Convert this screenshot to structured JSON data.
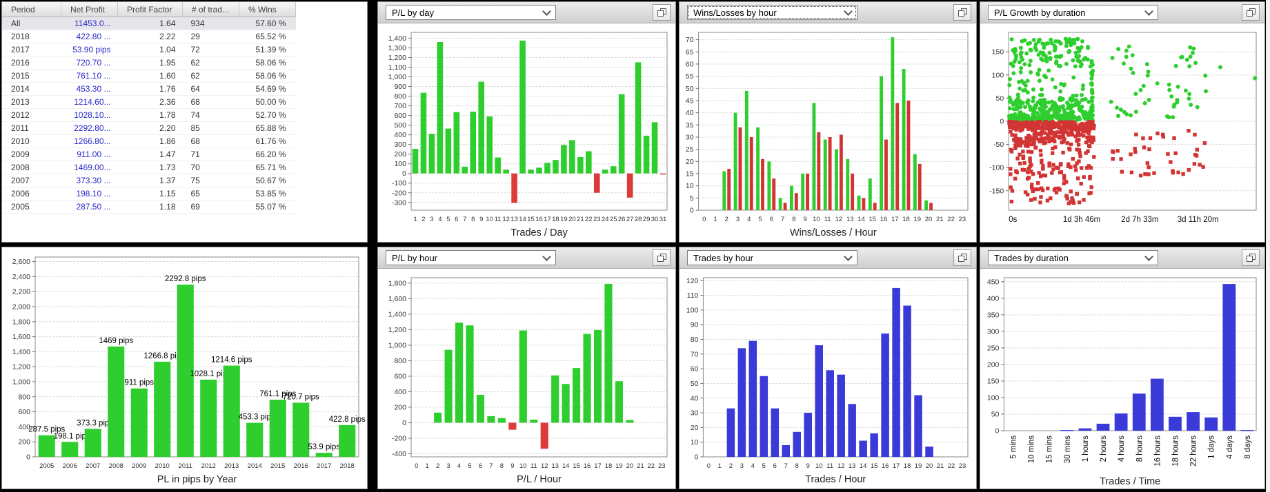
{
  "colors": {
    "win_green": "#2fce2f",
    "loss_red": "#d23434",
    "bar_red": "#dd3a3a",
    "trades_blue": "#3a3ad8",
    "profit_link_blue": "#2929cc"
  },
  "table": {
    "columns": [
      "Period",
      "Net Profit",
      "Profit Factor",
      "# of trad...",
      "% Wins"
    ],
    "rows": [
      [
        "All",
        "11453.0...",
        "1.64",
        "934",
        "57.60 %"
      ],
      [
        "2018",
        "422.80 ...",
        "2.22",
        "29",
        "65.52 %"
      ],
      [
        "2017",
        "53.90 pips",
        "1.04",
        "72",
        "51.39 %"
      ],
      [
        "2016",
        "720.70 ...",
        "1.95",
        "62",
        "58.06 %"
      ],
      [
        "2015",
        "761.10 ...",
        "1.60",
        "62",
        "58.06 %"
      ],
      [
        "2014",
        "453.30 ...",
        "1.76",
        "64",
        "54.69 %"
      ],
      [
        "2013",
        "1214.60...",
        "2.36",
        "68",
        "50.00 %"
      ],
      [
        "2012",
        "1028.10...",
        "1.78",
        "74",
        "52.70 %"
      ],
      [
        "2011",
        "2292.80...",
        "2.20",
        "85",
        "65.88 %"
      ],
      [
        "2010",
        "1266.80...",
        "1.86",
        "68",
        "61.76 %"
      ],
      [
        "2009",
        "911.00 ...",
        "1.47",
        "71",
        "66.20 %"
      ],
      [
        "2008",
        "1469.00...",
        "1.73",
        "70",
        "65.71 %"
      ],
      [
        "2007",
        "373.30 ...",
        "1.37",
        "75",
        "50.67 %"
      ],
      [
        "2006",
        "198.10 ...",
        "1.15",
        "65",
        "53.85 %"
      ],
      [
        "2005",
        "287.50 ...",
        "1.18",
        "69",
        "55.07 %"
      ]
    ]
  },
  "chart_data": [
    {
      "id": "pl-by-day",
      "type": "bar",
      "dropdown": "P/L by day",
      "xlabel": "Trades / Day",
      "categories": [
        "1",
        "2",
        "3",
        "4",
        "5",
        "6",
        "7",
        "8",
        "9",
        "10",
        "11",
        "12",
        "13",
        "14",
        "15",
        "16",
        "17",
        "18",
        "19",
        "20",
        "21",
        "22",
        "23",
        "24",
        "25",
        "26",
        "27",
        "28",
        "29",
        "30",
        "31"
      ],
      "values": [
        255,
        835,
        410,
        1360,
        465,
        635,
        70,
        640,
        950,
        590,
        165,
        40,
        -305,
        1375,
        40,
        60,
        110,
        140,
        295,
        345,
        170,
        230,
        -200,
        40,
        75,
        820,
        -250,
        1150,
        390,
        530,
        -10
      ],
      "positive_color": "#2fce2f",
      "negative_color": "#dd3a3a",
      "ymin": -380,
      "ymax": 1460,
      "ytick_min": -300,
      "ytick_max": 1400,
      "ystep": 100
    },
    {
      "id": "wins-losses-by-hour",
      "type": "grouped_bar",
      "dropdown": "Wins/Losses by hour",
      "xlabel": "Wins/Losses / Hour",
      "focused": true,
      "categories": [
        "0",
        "1",
        "2",
        "3",
        "4",
        "5",
        "6",
        "7",
        "8",
        "9",
        "10",
        "11",
        "12",
        "13",
        "14",
        "15",
        "16",
        "17",
        "18",
        "19",
        "20",
        "21",
        "22",
        "23"
      ],
      "series": [
        {
          "name": "Wins",
          "color": "#2fce2f",
          "values": [
            0,
            0,
            16,
            40,
            49,
            34,
            20,
            5,
            10,
            15,
            44,
            29,
            25,
            21,
            6,
            13,
            55,
            71,
            58,
            23,
            4,
            0,
            0,
            0
          ]
        },
        {
          "name": "Losses",
          "color": "#d23434",
          "values": [
            0,
            0,
            17,
            34,
            30,
            21,
            13,
            3,
            7,
            15,
            32,
            30,
            31,
            15,
            5,
            3,
            29,
            44,
            45,
            19,
            3,
            0,
            0,
            0
          ]
        }
      ],
      "ymin": 0,
      "ymax": 73,
      "ytick_min": 0,
      "ytick_max": 70,
      "ystep": 5
    },
    {
      "id": "pl-growth-by-duration",
      "type": "scatter",
      "dropdown": "P/L Growth by duration",
      "xlabel": "",
      "xticks": [
        {
          "f": 0.0,
          "label": "0s"
        },
        {
          "f": 0.295,
          "label": "1d 3h 46m"
        },
        {
          "f": 0.53,
          "label": "2d 7h 33m"
        },
        {
          "f": 0.765,
          "label": "3d 11h 20m"
        }
      ],
      "ymin": -192,
      "ymax": 192,
      "ytick_min": -150,
      "ytick_max": 150,
      "ystep": 50,
      "clusters": [
        {
          "shape": "circle",
          "color": "#2fce2f",
          "count": 200,
          "x": [
            0.002,
            0.335
          ],
          "y": [
            2,
            48
          ],
          "seed": 11
        },
        {
          "shape": "circle",
          "color": "#2fce2f",
          "count": 120,
          "x": [
            0.002,
            0.335
          ],
          "y": [
            1,
            14
          ],
          "seed": 12
        },
        {
          "shape": "circle",
          "color": "#2fce2f",
          "count": 45,
          "x": [
            0.002,
            0.335
          ],
          "y": [
            48,
            118
          ],
          "seed": 22
        },
        {
          "shape": "circle",
          "color": "#2fce2f",
          "count": 110,
          "x": [
            0.002,
            0.335
          ],
          "y": [
            118,
            178
          ],
          "seed": 33
        },
        {
          "shape": "circle",
          "color": "#2fce2f",
          "count": 30,
          "x": [
            0.333,
            0.34
          ],
          "y": [
            2,
            130
          ],
          "seed": 44
        },
        {
          "shape": "circle",
          "color": "#2fce2f",
          "count": 26,
          "x": [
            0.4,
            0.625
          ],
          "y": [
            8,
            162
          ],
          "seed": 55
        },
        {
          "shape": "circle",
          "color": "#2fce2f",
          "count": 28,
          "x": [
            0.64,
            0.8
          ],
          "y": [
            8,
            160
          ],
          "seed": 66
        },
        {
          "shape": "square",
          "color": "#d23434",
          "count": 180,
          "x": [
            0.002,
            0.345
          ],
          "y": [
            -48,
            -3
          ],
          "seed": 77
        },
        {
          "shape": "square",
          "color": "#d23434",
          "count": 140,
          "x": [
            0.002,
            0.345
          ],
          "y": [
            -16,
            -1
          ],
          "seed": 78
        },
        {
          "shape": "square",
          "color": "#d23434",
          "count": 100,
          "x": [
            0.002,
            0.345
          ],
          "y": [
            -135,
            -48
          ],
          "seed": 88
        },
        {
          "shape": "square",
          "color": "#d23434",
          "count": 40,
          "x": [
            0.008,
            0.335
          ],
          "y": [
            -178,
            -135
          ],
          "seed": 99
        },
        {
          "shape": "square",
          "color": "#d23434",
          "count": 24,
          "x": [
            0.4,
            0.625
          ],
          "y": [
            -122,
            -6
          ],
          "seed": 111
        },
        {
          "shape": "square",
          "color": "#d23434",
          "count": 18,
          "x": [
            0.64,
            0.8
          ],
          "y": [
            -115,
            -12
          ],
          "seed": 122
        }
      ],
      "points": [
        {
          "shape": "circle",
          "color": "#2fce2f",
          "f": 0.855,
          "v": 117
        },
        {
          "shape": "circle",
          "color": "#2fce2f",
          "f": 0.995,
          "v": 93
        }
      ]
    },
    {
      "id": "pl-in-pips-by-year",
      "type": "bar",
      "xlabel": "PL in pips by Year",
      "categories": [
        "2005",
        "2006",
        "2007",
        "2008",
        "2009",
        "2010",
        "2011",
        "2012",
        "2013",
        "2014",
        "2015",
        "2016",
        "2017",
        "2018"
      ],
      "values": [
        287.5,
        198.1,
        373.3,
        1469,
        911,
        1266.8,
        2292.8,
        1028.1,
        1214.6,
        453.3,
        761.1,
        720.7,
        53.9,
        422.8
      ],
      "bar_labels": [
        "287.5 pips",
        "198.1 pip",
        "373.3 pip",
        "1469 pips",
        "911 pips",
        "1266.8 pip",
        "2292.8 pips",
        "1028.1 pip",
        "1214.6 pips",
        "453.3 pip",
        "761.1 pips",
        "720.7 pips",
        "53.9 pips",
        "422.8 pips"
      ],
      "positive_color": "#2fce2f",
      "negative_color": "#dd3a3a",
      "ymin": 0,
      "ymax": 2660,
      "ytick_min": 0,
      "ytick_max": 2600,
      "ystep": 200
    },
    {
      "id": "pl-by-hour",
      "type": "bar",
      "dropdown": "P/L by hour",
      "xlabel": "P/L / Hour",
      "categories": [
        "0",
        "1",
        "2",
        "3",
        "4",
        "5",
        "6",
        "7",
        "8",
        "9",
        "10",
        "11",
        "12",
        "13",
        "14",
        "15",
        "16",
        "17",
        "18",
        "19",
        "20",
        "21",
        "22",
        "23"
      ],
      "values": [
        0,
        0,
        130,
        940,
        1290,
        1255,
        360,
        85,
        60,
        -90,
        1190,
        40,
        -335,
        610,
        500,
        705,
        1145,
        1195,
        1790,
        535,
        35,
        0,
        0,
        0
      ],
      "positive_color": "#2fce2f",
      "negative_color": "#dd3a3a",
      "ymin": -440,
      "ymax": 1870,
      "ytick_min": -400,
      "ytick_max": 1800,
      "ystep": 200
    },
    {
      "id": "trades-by-hour",
      "type": "bar",
      "dropdown": "Trades by hour",
      "xlabel": "Trades / Hour",
      "categories": [
        "0",
        "1",
        "2",
        "3",
        "4",
        "5",
        "6",
        "7",
        "8",
        "9",
        "10",
        "11",
        "12",
        "13",
        "14",
        "15",
        "16",
        "17",
        "18",
        "19",
        "20",
        "21",
        "22",
        "23"
      ],
      "values": [
        0,
        0,
        33,
        74,
        79,
        55,
        33,
        8,
        17,
        30,
        76,
        59,
        56,
        36,
        11,
        16,
        84,
        115,
        103,
        42,
        7,
        0,
        0,
        0
      ],
      "positive_color": "#3a3ad8",
      "negative_color": "#3a3ad8",
      "ymin": 0,
      "ymax": 122,
      "ytick_min": 0,
      "ytick_max": 120,
      "ystep": 10
    },
    {
      "id": "trades-by-duration",
      "type": "bar",
      "dropdown": "Trades by duration",
      "xlabel": "Trades / Time",
      "rotate_x": true,
      "categories": [
        "5 mins",
        "10 mins",
        "15 mins",
        "30 mins",
        "1 hours",
        "2 hours",
        "4 hours",
        "8 hours",
        "16 hours",
        "18 hours",
        "22 hours",
        "1 days",
        "4 days",
        "8 days"
      ],
      "values": [
        0,
        0,
        0,
        2,
        7,
        21,
        52,
        112,
        157,
        42,
        56,
        40,
        443,
        2
      ],
      "positive_color": "#3a3ad8",
      "negative_color": "#3a3ad8",
      "ymin": 0,
      "ymax": 462,
      "ytick_min": 0,
      "ytick_max": 450,
      "ystep": 50
    }
  ]
}
